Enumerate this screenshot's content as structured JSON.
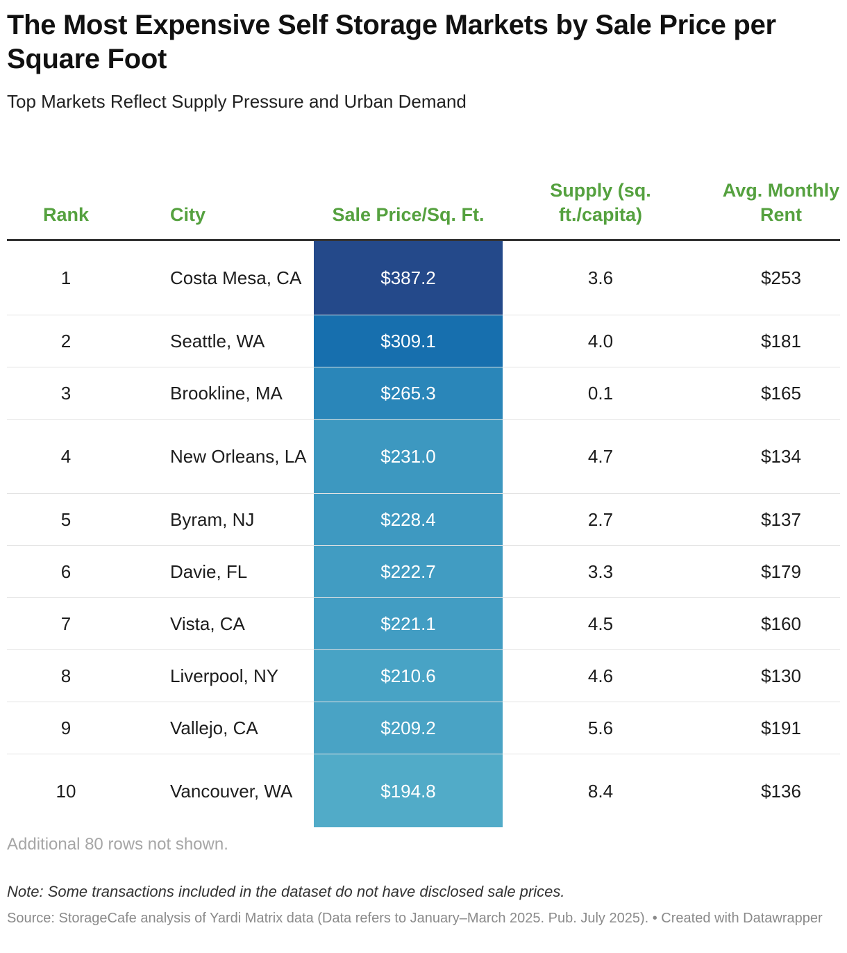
{
  "title": "The Most Expensive Self Storage Markets by Sale Price per Square Foot",
  "subtitle": "Top Markets Reflect Supply Pressure and Urban Demand",
  "columns": {
    "rank": "Rank",
    "city": "City",
    "price": "Sale Price/Sq. Ft.",
    "supply": "Supply (sq. ft./capita)",
    "rent": "Avg. Monthly Rent"
  },
  "rows": [
    {
      "rank": "1",
      "city": "Costa Mesa, CA",
      "price": "$387.2",
      "supply": "3.6",
      "rent": "$253"
    },
    {
      "rank": "2",
      "city": "Seattle, WA",
      "price": "$309.1",
      "supply": "4.0",
      "rent": "$181"
    },
    {
      "rank": "3",
      "city": "Brookline, MA",
      "price": "$265.3",
      "supply": "0.1",
      "rent": "$165"
    },
    {
      "rank": "4",
      "city": "New Orleans, LA",
      "price": "$231.0",
      "supply": "4.7",
      "rent": "$134"
    },
    {
      "rank": "5",
      "city": "Byram, NJ",
      "price": "$228.4",
      "supply": "2.7",
      "rent": "$137"
    },
    {
      "rank": "6",
      "city": "Davie, FL",
      "price": "$222.7",
      "supply": "3.3",
      "rent": "$179"
    },
    {
      "rank": "7",
      "city": "Vista, CA",
      "price": "$221.1",
      "supply": "4.5",
      "rent": "$160"
    },
    {
      "rank": "8",
      "city": "Liverpool, NY",
      "price": "$210.6",
      "supply": "4.6",
      "rent": "$130"
    },
    {
      "rank": "9",
      "city": "Vallejo, CA",
      "price": "$209.2",
      "supply": "5.6",
      "rent": "$191"
    },
    {
      "rank": "10",
      "city": "Vancouver, WA",
      "price": "$194.8",
      "supply": "8.4",
      "rent": "$136"
    }
  ],
  "rows_note": "Additional 80 rows not shown.",
  "note": "Note: Some transactions included in the dataset do not have disclosed sale prices.",
  "source": "Source: StorageCafe analysis of Yardi Matrix data (Data refers to January–March 2025. Pub. July 2025). • Created with Datawrapper",
  "colors": {
    "header_text": "#55a13f",
    "scale_low": "#51abc8",
    "scale_mid": "#1673b2",
    "scale_high": "#24498a"
  },
  "chart_data": {
    "type": "table",
    "columns": [
      "Rank",
      "City",
      "Sale Price/Sq. Ft.",
      "Supply (sq. ft./capita)",
      "Avg. Monthly Rent"
    ],
    "heatmap_column": "Sale Price/Sq. Ft.",
    "sale_price_values": [
      387.2,
      309.1,
      265.3,
      231.0,
      228.4,
      222.7,
      221.1,
      210.6,
      209.2,
      194.8
    ],
    "supply_values": [
      3.6,
      4.0,
      0.1,
      4.7,
      2.7,
      3.3,
      4.5,
      4.6,
      5.6,
      8.4
    ],
    "rent_values": [
      253,
      181,
      165,
      134,
      137,
      179,
      160,
      130,
      191,
      136
    ]
  }
}
